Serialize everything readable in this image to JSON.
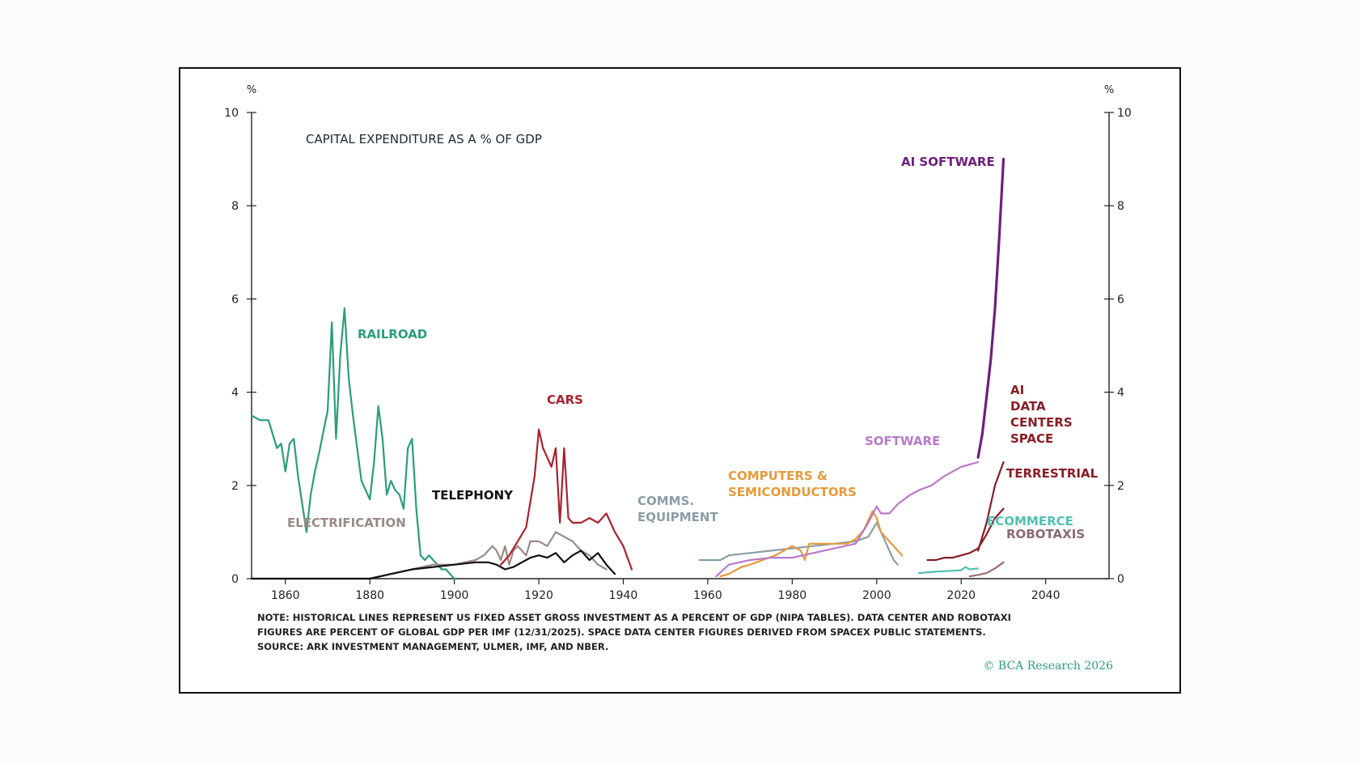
{
  "chart_data": {
    "type": "line",
    "title": "CAPITAL EXPENDITURE AS A % OF GDP",
    "y_unit_left": "%",
    "y_unit_right": "%",
    "xlim": [
      1852,
      2055
    ],
    "ylim": [
      0,
      10
    ],
    "x_ticks": [
      1860,
      1880,
      1900,
      1920,
      1940,
      1960,
      1980,
      2000,
      2020,
      2040
    ],
    "y_ticks": [
      0,
      2,
      4,
      6,
      8,
      10
    ],
    "grid": false,
    "legend": "inline labels",
    "series": [
      {
        "name": "RAILROAD",
        "color": "#2a9d7a",
        "x": [
          1852,
          1854,
          1856,
          1857,
          1858,
          1859,
          1860,
          1861,
          1862,
          1863,
          1865,
          1866,
          1867,
          1868,
          1870,
          1871,
          1872,
          1873,
          1874,
          1875,
          1876,
          1877,
          1878,
          1879,
          1880,
          1881,
          1882,
          1883,
          1884,
          1885,
          1886,
          1887,
          1888,
          1889,
          1890,
          1891,
          1892,
          1893,
          1894,
          1895,
          1896,
          1897,
          1898,
          1899,
          1900
        ],
        "values": [
          3.5,
          3.4,
          3.4,
          3.1,
          2.8,
          2.9,
          2.3,
          2.9,
          3.0,
          2.2,
          1.0,
          1.8,
          2.3,
          2.7,
          3.6,
          5.5,
          3.0,
          4.8,
          5.8,
          4.3,
          3.5,
          2.8,
          2.1,
          1.9,
          1.7,
          2.5,
          3.7,
          3.0,
          1.8,
          2.1,
          1.9,
          1.8,
          1.5,
          2.8,
          3.0,
          1.5,
          0.5,
          0.4,
          0.5,
          0.4,
          0.3,
          0.2,
          0.2,
          0.1,
          0.0
        ]
      },
      {
        "name": "ELECTRIFICATION",
        "color": "#9a8a86",
        "x": [
          1852,
          1880,
          1885,
          1890,
          1895,
          1900,
          1905,
          1907,
          1909,
          1910,
          1911,
          1912,
          1913,
          1914,
          1915,
          1917,
          1918,
          1920,
          1922,
          1924,
          1926,
          1928,
          1930,
          1932,
          1934,
          1936
        ],
        "values": [
          0,
          0,
          0.1,
          0.2,
          0.3,
          0.3,
          0.4,
          0.5,
          0.7,
          0.6,
          0.4,
          0.7,
          0.3,
          0.6,
          0.7,
          0.5,
          0.8,
          0.8,
          0.7,
          1.0,
          0.9,
          0.8,
          0.6,
          0.5,
          0.3,
          0.2
        ]
      },
      {
        "name": "TELEPHONY",
        "color": "#111111",
        "x": [
          1852,
          1880,
          1885,
          1890,
          1895,
          1900,
          1905,
          1908,
          1910,
          1912,
          1914,
          1916,
          1918,
          1920,
          1922,
          1924,
          1926,
          1928,
          1930,
          1932,
          1934,
          1936,
          1938
        ],
        "values": [
          0,
          0,
          0.1,
          0.2,
          0.25,
          0.3,
          0.35,
          0.35,
          0.3,
          0.2,
          0.25,
          0.35,
          0.45,
          0.5,
          0.45,
          0.55,
          0.35,
          0.5,
          0.6,
          0.4,
          0.55,
          0.3,
          0.1
        ]
      },
      {
        "name": "CARS",
        "color": "#a8232d",
        "x": [
          1911,
          1913,
          1915,
          1917,
          1919,
          1920,
          1921,
          1922,
          1923,
          1924,
          1925,
          1926,
          1927,
          1928,
          1930,
          1932,
          1934,
          1936,
          1938,
          1940,
          1942
        ],
        "values": [
          0.3,
          0.5,
          0.8,
          1.1,
          2.2,
          3.2,
          2.8,
          2.6,
          2.4,
          2.8,
          1.2,
          2.8,
          1.3,
          1.2,
          1.2,
          1.3,
          1.2,
          1.4,
          1.0,
          0.7,
          0.2
        ]
      },
      {
        "name": "COMMS. EQUIPMENT",
        "color": "#8a9ea6",
        "x": [
          1958,
          1963,
          1965,
          1970,
          1975,
          1980,
          1985,
          1990,
          1995,
          1998,
          2000,
          2002,
          2004,
          2005
        ],
        "values": [
          0.4,
          0.4,
          0.5,
          0.55,
          0.6,
          0.65,
          0.7,
          0.75,
          0.8,
          0.9,
          1.2,
          0.8,
          0.4,
          0.3
        ]
      },
      {
        "name": "COMPUTERS & SEMICONDUCTORS",
        "color": "#e69a3a",
        "x": [
          1963,
          1965,
          1968,
          1970,
          1973,
          1976,
          1978,
          1980,
          1982,
          1983,
          1984,
          1986,
          1988,
          1990,
          1993,
          1995,
          1997,
          1999,
          2000,
          2001,
          2002,
          2004,
          2006
        ],
        "values": [
          0.05,
          0.1,
          0.25,
          0.3,
          0.4,
          0.5,
          0.6,
          0.7,
          0.6,
          0.4,
          0.75,
          0.75,
          0.75,
          0.75,
          0.75,
          0.85,
          1.05,
          1.45,
          1.3,
          1.0,
          0.9,
          0.7,
          0.5
        ]
      },
      {
        "name": "SOFTWARE",
        "color": "#b77ac7",
        "x": [
          1962,
          1965,
          1970,
          1975,
          1980,
          1985,
          1990,
          1995,
          1998,
          2000,
          2001,
          2003,
          2005,
          2008,
          2010,
          2013,
          2016,
          2020,
          2024
        ],
        "values": [
          0.05,
          0.3,
          0.4,
          0.45,
          0.45,
          0.55,
          0.65,
          0.75,
          1.2,
          1.55,
          1.4,
          1.4,
          1.6,
          1.8,
          1.9,
          2.0,
          2.2,
          2.4,
          2.5
        ]
      },
      {
        "name": "AI SOFTWARE",
        "color": "#6e1f7e",
        "x": [
          2024,
          2025,
          2026,
          2027,
          2028,
          2029,
          2030
        ],
        "values": [
          2.6,
          3.1,
          3.9,
          4.7,
          5.8,
          7.3,
          9.0
        ]
      },
      {
        "name": "AI DATA CENTERS SPACE",
        "color": "#8a1c24",
        "x": [
          2024,
          2026,
          2028,
          2030
        ],
        "values": [
          0.6,
          1.2,
          2.0,
          2.5
        ]
      },
      {
        "name": "TERRESTRIAL",
        "color": "#8a1c24",
        "x": [
          2012,
          2014,
          2016,
          2018,
          2020,
          2022,
          2024,
          2026,
          2028,
          2030
        ],
        "values": [
          0.4,
          0.4,
          0.45,
          0.45,
          0.5,
          0.55,
          0.65,
          0.95,
          1.3,
          1.5
        ]
      },
      {
        "name": "ECOMMERCE",
        "color": "#4fc1b1",
        "x": [
          2010,
          2014,
          2018,
          2020,
          2021,
          2022,
          2024
        ],
        "values": [
          0.12,
          0.15,
          0.17,
          0.18,
          0.25,
          0.2,
          0.22
        ]
      },
      {
        "name": "ROBOTAXIS",
        "color": "#9c6b74",
        "x": [
          2022,
          2024,
          2026,
          2028,
          2030
        ],
        "values": [
          0.05,
          0.08,
          0.12,
          0.22,
          0.35
        ]
      }
    ],
    "labels": {
      "railroad": "RAILROAD",
      "electrification": "ELECTRIFICATION",
      "telephony": "TELEPHONY",
      "cars": "CARS",
      "comms_1": "COMMS.",
      "comms_2": "EQUIPMENT",
      "computers_1": "COMPUTERS &",
      "computers_2": "SEMICONDUCTORS",
      "software": "SOFTWARE",
      "ai_software": "AI SOFTWARE",
      "ai_dc_1": "AI",
      "ai_dc_2": "DATA",
      "ai_dc_3": "CENTERS",
      "ai_dc_4": "SPACE",
      "terrestrial": "TERRESTRIAL",
      "ecommerce": "ECOMMERCE",
      "robotaxis": "ROBOTAXIS"
    },
    "note_lines": [
      "NOTE: HISTORICAL LINES REPRESENT US FIXED ASSET GROSS INVESTMENT AS A PERCENT OF GDP (NIPA TABLES). DATA CENTER AND ROBOTAXI",
      "FIGURES ARE PERCENT OF GLOBAL GDP PER IMF (12/31/2025). SPACE DATA CENTER FIGURES DERIVED FROM SPACEX PUBLIC STATEMENTS.",
      "SOURCE: ARK INVESTMENT MANAGEMENT, ULMER, IMF, AND NBER."
    ],
    "credit": "© BCA Research 2026"
  }
}
